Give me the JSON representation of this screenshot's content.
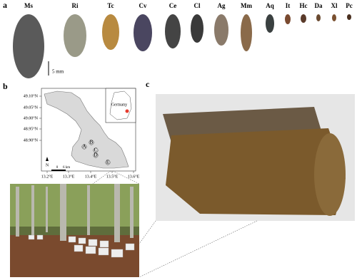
{
  "panel_a": {
    "label": "a",
    "species": [
      "Ms",
      "Ri",
      "Tc",
      "Cv",
      "Ce",
      "Cl",
      "Ag",
      "Mm",
      "Aq",
      "It",
      "Hc",
      "Da",
      "Xl",
      "Pc"
    ],
    "scale_bar": "5 mm"
  },
  "panel_b": {
    "label": "b",
    "latitudes": [
      "49.10°N",
      "49.05°N",
      "49.00°N",
      "48.95°N",
      "48.90°N"
    ],
    "longitudes": [
      "13.2°E",
      "13.3°E",
      "13.4°E",
      "13.5°E",
      "13.6°E"
    ],
    "inset": "Germany",
    "sites": [
      "A",
      "B",
      "C",
      "D",
      "E"
    ],
    "north": "N",
    "scale": [
      "0",
      "6 km"
    ]
  },
  "panel_c": {
    "label": "c"
  }
}
